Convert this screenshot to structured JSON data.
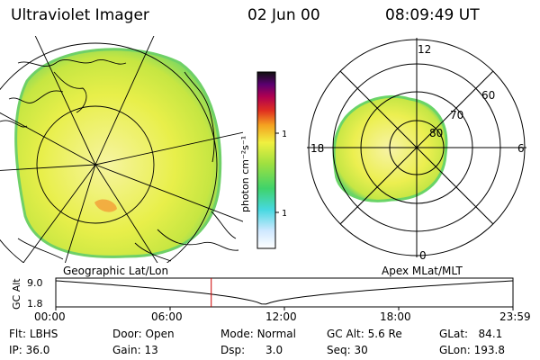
{
  "header": {
    "title": "Ultraviolet Imager",
    "date": "02 Jun 00",
    "time": "08:09:49 UT"
  },
  "colorbar": {
    "label": "photon cm⁻²s⁻¹",
    "ticks": [
      "100",
      "10"
    ]
  },
  "polar_labels": {
    "mlt_top": "12",
    "mlt_left": "18",
    "mlt_right": "6",
    "mlt_bottom": "0",
    "lat_60": "60",
    "lat_70": "70",
    "lat_80": "80"
  },
  "panel_labels": {
    "left": "Geographic Lat/Lon",
    "right": "Apex MLat/MLT"
  },
  "altitude_plot": {
    "axis_label": "GC Alt",
    "y_ticks": [
      "9.0",
      "1.8"
    ],
    "x_ticks": [
      "00:00",
      "06:00",
      "12:00",
      "18:00",
      "23:59"
    ],
    "marker_time_fraction": 0.34,
    "line_color": "#000000",
    "marker_color": "#cc0000"
  },
  "footer": {
    "row1": {
      "flt_label": "Flt:",
      "flt_value": "LBHS",
      "door_label": "Door:",
      "door_value": "Open",
      "mode_label": "Mode:",
      "mode_value": "Normal",
      "gcalt_label": "GC Alt:",
      "gcalt_value": "5.6 Re",
      "glat_label": "GLat:",
      "glat_value": "84.1"
    },
    "row2": {
      "ip_label": "IP:",
      "ip_value": "36.0",
      "gain_label": "Gain:",
      "gain_value": "13",
      "dsp_label": "Dsp:",
      "dsp_value": "3.0",
      "seq_label": "Seq:",
      "seq_value": "30",
      "glon_label": "GLon:",
      "glon_value": "193.8"
    }
  },
  "colors": {
    "aurora_base": "#e6ef4a",
    "aurora_bright": "#f3f38a",
    "aurora_edge": "#5fcf6a",
    "aurora_hot": "#f2a23a"
  }
}
